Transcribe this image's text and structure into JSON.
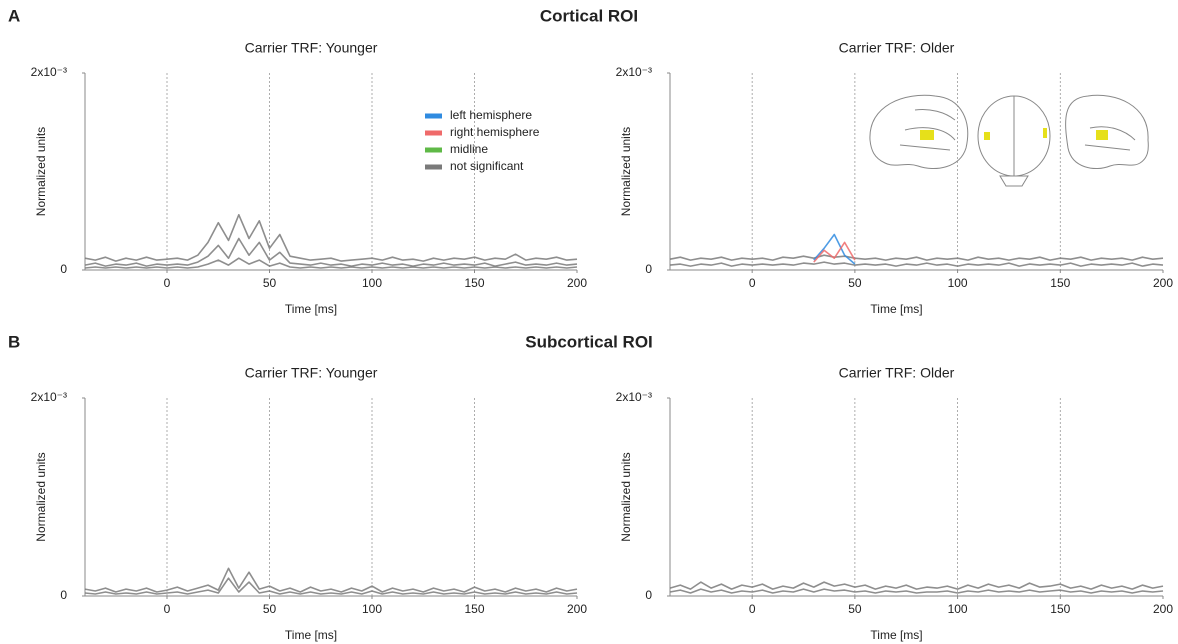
{
  "sections": [
    {
      "letter": "A",
      "title": "Cortical ROI"
    },
    {
      "letter": "B",
      "title": "Subcortical ROI"
    }
  ],
  "chart_data": [
    {
      "type": "line",
      "title": "Carrier TRF: Younger",
      "xlabel": "Time [ms]",
      "ylabel": "Normalized units",
      "xlim": [
        -40,
        200
      ],
      "ylim": [
        0,
        0.002
      ],
      "xticks": [
        0,
        50,
        100,
        150,
        200
      ],
      "yticks": [
        0,
        {
          "value": 0.002,
          "label": "2x10⁻³"
        }
      ],
      "vlines": [
        0,
        50,
        100,
        150
      ],
      "legend": [
        {
          "label": "left hemisphere",
          "color": "#2f8be0"
        },
        {
          "label": "right hemisphere",
          "color": "#ef6a6a"
        },
        {
          "label": "midline",
          "color": "#5fb947"
        },
        {
          "label": "not significant",
          "color": "#7a7a7a"
        }
      ],
      "x": [
        -40,
        -35,
        -30,
        -25,
        -20,
        -15,
        -10,
        -5,
        0,
        5,
        10,
        15,
        20,
        25,
        30,
        35,
        40,
        45,
        50,
        55,
        60,
        65,
        70,
        75,
        80,
        85,
        90,
        95,
        100,
        105,
        110,
        115,
        120,
        125,
        130,
        135,
        140,
        145,
        150,
        155,
        160,
        165,
        170,
        175,
        180,
        185,
        190,
        195,
        200
      ],
      "series": [
        {
          "color": "#7a7a7a",
          "values": [
            0.00012,
            0.0001,
            0.00013,
            9e-05,
            0.00012,
            0.0001,
            0.00013,
            0.0001,
            0.00011,
            0.00012,
            0.0001,
            0.00015,
            0.00028,
            0.00048,
            0.0003,
            0.00056,
            0.00032,
            0.0005,
            0.00022,
            0.00036,
            0.00014,
            0.00012,
            0.0001,
            0.00011,
            0.00012,
            9e-05,
            0.0001,
            0.00011,
            0.00012,
            0.0001,
            0.00013,
            0.0001,
            0.00011,
            9e-05,
            0.00012,
            0.0001,
            0.00012,
            0.00011,
            0.00013,
            0.0001,
            0.00012,
            0.00011,
            0.00016,
            0.0001,
            0.00012,
            0.00011,
            0.00013,
            0.0001,
            0.00011
          ]
        },
        {
          "color": "#7a7a7a",
          "values": [
            5e-05,
            7e-05,
            4e-05,
            6e-05,
            5e-05,
            7e-05,
            4e-05,
            6e-05,
            5e-05,
            6e-05,
            5e-05,
            8e-05,
            0.00014,
            0.00025,
            0.00012,
            0.00032,
            0.00015,
            0.00028,
            0.0001,
            0.00018,
            7e-05,
            6e-05,
            5e-05,
            7e-05,
            5e-05,
            6e-05,
            4e-05,
            6e-05,
            5e-05,
            7e-05,
            5e-05,
            6e-05,
            4e-05,
            6e-05,
            5e-05,
            7e-05,
            5e-05,
            6e-05,
            5e-05,
            7e-05,
            4e-05,
            6e-05,
            8e-05,
            5e-05,
            6e-05,
            5e-05,
            7e-05,
            5e-05,
            6e-05
          ]
        },
        {
          "color": "#7a7a7a",
          "values": [
            2e-05,
            3e-05,
            2e-05,
            3e-05,
            2e-05,
            3e-05,
            2e-05,
            3e-05,
            2e-05,
            3e-05,
            2e-05,
            3e-05,
            6e-05,
            0.0001,
            5e-05,
            0.00012,
            6e-05,
            0.0001,
            4e-05,
            7e-05,
            3e-05,
            2e-05,
            3e-05,
            2e-05,
            3e-05,
            2e-05,
            3e-05,
            2e-05,
            3e-05,
            2e-05,
            3e-05,
            2e-05,
            3e-05,
            2e-05,
            3e-05,
            2e-05,
            3e-05,
            2e-05,
            3e-05,
            2e-05,
            3e-05,
            2e-05,
            3e-05,
            2e-05,
            3e-05,
            2e-05,
            3e-05,
            2e-05,
            3e-05
          ]
        }
      ]
    },
    {
      "type": "line",
      "title": "Carrier TRF: Older",
      "xlabel": "Time [ms]",
      "ylabel": "Normalized units",
      "xlim": [
        -40,
        200
      ],
      "ylim": [
        0,
        0.002
      ],
      "xticks": [
        0,
        50,
        100,
        150,
        200
      ],
      "yticks": [
        0,
        {
          "value": 0.002,
          "label": "2x10⁻³"
        }
      ],
      "vlines": [
        0,
        50,
        100,
        150
      ],
      "x": [
        -40,
        -35,
        -30,
        -25,
        -20,
        -15,
        -10,
        -5,
        0,
        5,
        10,
        15,
        20,
        25,
        30,
        35,
        40,
        45,
        50,
        55,
        60,
        65,
        70,
        75,
        80,
        85,
        90,
        95,
        100,
        105,
        110,
        115,
        120,
        125,
        130,
        135,
        140,
        145,
        150,
        155,
        160,
        165,
        170,
        175,
        180,
        185,
        190,
        195,
        200
      ],
      "series": [
        {
          "color": "#7a7a7a",
          "values": [
            0.00011,
            0.00013,
            0.0001,
            0.00012,
            0.00011,
            0.00013,
            0.0001,
            0.00012,
            0.00011,
            0.00012,
            0.0001,
            0.00013,
            0.00012,
            0.00014,
            0.00012,
            0.00015,
            0.00013,
            0.00014,
            0.00012,
            0.00011,
            0.00012,
            0.0001,
            0.00012,
            0.00011,
            0.00013,
            0.0001,
            0.00012,
            0.00011,
            0.00012,
            0.0001,
            0.00013,
            0.00011,
            0.00012,
            0.0001,
            0.00012,
            0.00011,
            0.00013,
            0.0001,
            0.00012,
            0.00011,
            0.00013,
            0.0001,
            0.00012,
            0.00011,
            0.00012,
            0.0001,
            0.00013,
            0.00011,
            0.00012
          ]
        },
        {
          "color": "#7a7a7a",
          "values": [
            5e-05,
            6e-05,
            4e-05,
            6e-05,
            5e-05,
            7e-05,
            4e-05,
            6e-05,
            5e-05,
            6e-05,
            5e-05,
            6e-05,
            5e-05,
            7e-05,
            6e-05,
            8e-05,
            6e-05,
            7e-05,
            5e-05,
            6e-05,
            5e-05,
            6e-05,
            4e-05,
            6e-05,
            5e-05,
            7e-05,
            5e-05,
            6e-05,
            4e-05,
            6e-05,
            5e-05,
            6e-05,
            5e-05,
            7e-05,
            4e-05,
            6e-05,
            5e-05,
            6e-05,
            5e-05,
            7e-05,
            4e-05,
            6e-05,
            5e-05,
            6e-05,
            5e-05,
            7e-05,
            4e-05,
            6e-05,
            5e-05
          ]
        },
        {
          "color": "#2f8be0",
          "values": [
            null,
            null,
            null,
            null,
            null,
            null,
            null,
            null,
            null,
            null,
            null,
            null,
            null,
            null,
            0.0001,
            0.00022,
            0.00036,
            0.00015,
            6e-05,
            null,
            null,
            null,
            null,
            null,
            null,
            null,
            null,
            null,
            null,
            null,
            null,
            null,
            null,
            null,
            null,
            null,
            null,
            null,
            null,
            null,
            null,
            null,
            null,
            null,
            null,
            null,
            null,
            null,
            null
          ]
        },
        {
          "color": "#ef6a6a",
          "values": [
            null,
            null,
            null,
            null,
            null,
            null,
            null,
            null,
            null,
            null,
            null,
            null,
            null,
            null,
            8e-05,
            0.0002,
            0.00012,
            0.00028,
            0.0001,
            null,
            null,
            null,
            null,
            null,
            null,
            null,
            null,
            null,
            null,
            null,
            null,
            null,
            null,
            null,
            null,
            null,
            null,
            null,
            null,
            null,
            null,
            null,
            null,
            null,
            null,
            null,
            null,
            null,
            null
          ]
        }
      ]
    },
    {
      "type": "line",
      "title": "Carrier TRF: Younger",
      "xlabel": "Time [ms]",
      "ylabel": "Normalized units",
      "xlim": [
        -40,
        200
      ],
      "ylim": [
        0,
        0.002
      ],
      "xticks": [
        0,
        50,
        100,
        150,
        200
      ],
      "yticks": [
        0,
        {
          "value": 0.002,
          "label": "2x10⁻³"
        }
      ],
      "vlines": [
        0,
        50,
        100,
        150
      ],
      "x": [
        -40,
        -35,
        -30,
        -25,
        -20,
        -15,
        -10,
        -5,
        0,
        5,
        10,
        15,
        20,
        25,
        30,
        35,
        40,
        45,
        50,
        55,
        60,
        65,
        70,
        75,
        80,
        85,
        90,
        95,
        100,
        105,
        110,
        115,
        120,
        125,
        130,
        135,
        140,
        145,
        150,
        155,
        160,
        165,
        170,
        175,
        180,
        185,
        190,
        195,
        200
      ],
      "series": [
        {
          "color": "#7a7a7a",
          "values": [
            7e-05,
            5e-05,
            8e-05,
            4e-05,
            7e-05,
            5e-05,
            8e-05,
            4e-05,
            6e-05,
            9e-05,
            5e-05,
            8e-05,
            0.00011,
            6e-05,
            0.00028,
            8e-05,
            0.00024,
            7e-05,
            0.0001,
            5e-05,
            8e-05,
            4e-05,
            9e-05,
            5e-05,
            7e-05,
            4e-05,
            8e-05,
            5e-05,
            0.0001,
            4e-05,
            8e-05,
            5e-05,
            7e-05,
            4e-05,
            8e-05,
            5e-05,
            7e-05,
            4e-05,
            9e-05,
            5e-05,
            7e-05,
            4e-05,
            8e-05,
            5e-05,
            7e-05,
            4e-05,
            8e-05,
            5e-05,
            7e-05
          ]
        },
        {
          "color": "#7a7a7a",
          "values": [
            3e-05,
            2e-05,
            4e-05,
            2e-05,
            3e-05,
            2e-05,
            4e-05,
            2e-05,
            3e-05,
            4e-05,
            2e-05,
            4e-05,
            6e-05,
            3e-05,
            0.00018,
            4e-05,
            0.00014,
            3e-05,
            5e-05,
            2e-05,
            4e-05,
            2e-05,
            4e-05,
            2e-05,
            3e-05,
            2e-05,
            4e-05,
            2e-05,
            5e-05,
            2e-05,
            4e-05,
            2e-05,
            3e-05,
            2e-05,
            4e-05,
            2e-05,
            3e-05,
            2e-05,
            4e-05,
            2e-05,
            3e-05,
            2e-05,
            4e-05,
            2e-05,
            3e-05,
            2e-05,
            4e-05,
            2e-05,
            3e-05
          ]
        }
      ]
    },
    {
      "type": "line",
      "title": "Carrier TRF: Older",
      "xlabel": "Time [ms]",
      "ylabel": "Normalized units",
      "xlim": [
        -40,
        200
      ],
      "ylim": [
        0,
        0.002
      ],
      "xticks": [
        0,
        50,
        100,
        150,
        200
      ],
      "yticks": [
        0,
        {
          "value": 0.002,
          "label": "2x10⁻³"
        }
      ],
      "vlines": [
        0,
        50,
        100,
        150
      ],
      "x": [
        -40,
        -35,
        -30,
        -25,
        -20,
        -15,
        -10,
        -5,
        0,
        5,
        10,
        15,
        20,
        25,
        30,
        35,
        40,
        45,
        50,
        55,
        60,
        65,
        70,
        75,
        80,
        85,
        90,
        95,
        100,
        105,
        110,
        115,
        120,
        125,
        130,
        135,
        140,
        145,
        150,
        155,
        160,
        165,
        170,
        175,
        180,
        185,
        190,
        195,
        200
      ],
      "series": [
        {
          "color": "#7a7a7a",
          "values": [
            8e-05,
            0.00011,
            7e-05,
            0.00014,
            8e-05,
            0.00012,
            7e-05,
            0.00011,
            9e-05,
            0.00012,
            7e-05,
            0.0001,
            8e-05,
            0.00013,
            9e-05,
            0.00014,
            0.0001,
            0.00012,
            9e-05,
            0.00011,
            7e-05,
            0.0001,
            8e-05,
            0.00011,
            7e-05,
            9e-05,
            8e-05,
            0.0001,
            7e-05,
            0.00011,
            8e-05,
            0.00012,
            9e-05,
            0.00011,
            8e-05,
            0.00013,
            9e-05,
            0.0001,
            0.00012,
            8e-05,
            0.0001,
            7e-05,
            0.00011,
            8e-05,
            0.0001,
            7e-05,
            0.00011,
            8e-05,
            0.0001
          ]
        },
        {
          "color": "#7a7a7a",
          "values": [
            4e-05,
            6e-05,
            3e-05,
            7e-05,
            4e-05,
            6e-05,
            3e-05,
            5e-05,
            4e-05,
            6e-05,
            3e-05,
            5e-05,
            4e-05,
            7e-05,
            4e-05,
            7e-05,
            5e-05,
            6e-05,
            4e-05,
            5e-05,
            3e-05,
            5e-05,
            4e-05,
            5e-05,
            3e-05,
            4e-05,
            4e-05,
            5e-05,
            3e-05,
            5e-05,
            4e-05,
            6e-05,
            4e-05,
            5e-05,
            4e-05,
            6e-05,
            4e-05,
            5e-05,
            6e-05,
            4e-05,
            5e-05,
            3e-05,
            5e-05,
            4e-05,
            5e-05,
            3e-05,
            5e-05,
            4e-05,
            5e-05
          ]
        }
      ]
    }
  ]
}
